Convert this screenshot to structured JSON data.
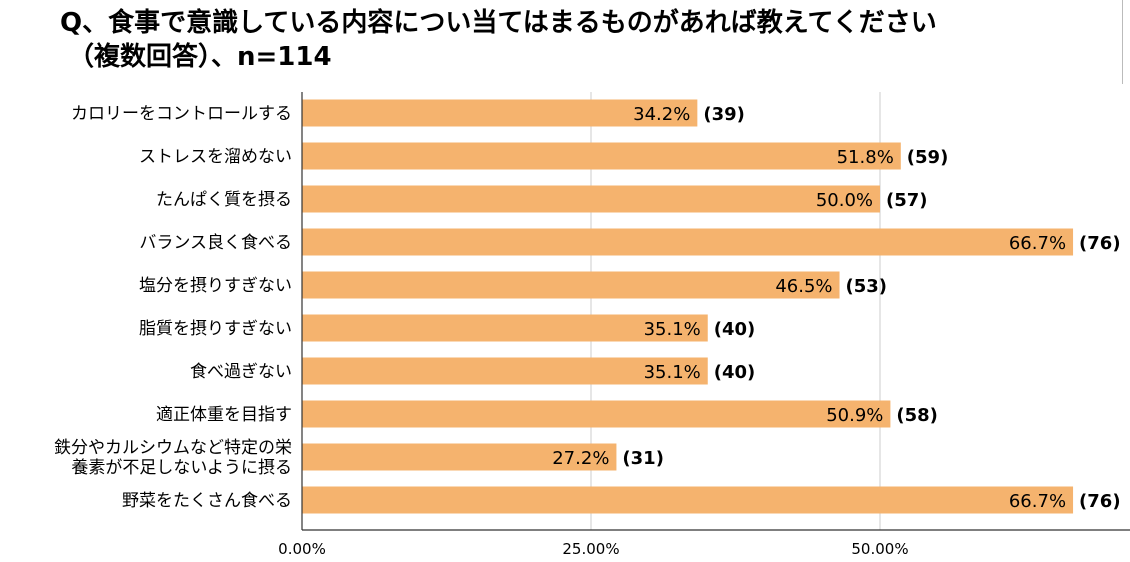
{
  "header": {
    "title_line1": "Q、食事で意識している内容につい当てはまるものがあれば教えてください",
    "title_line2": "（複数回答）、n=114"
  },
  "colors": {
    "bar": "#F5B36E",
    "grid": "#cccccc",
    "axis": "#333333"
  },
  "chart_data": {
    "type": "bar",
    "orientation": "horizontal",
    "title": "Q、食事で意識している内容につい当てはまるものがあれば教えてください（複数回答）、n=114",
    "categories": [
      [
        "カロリーをコントロールする"
      ],
      [
        "ストレスを溜めない"
      ],
      [
        "たんぱく質を摂る"
      ],
      [
        "バランス良く食べる"
      ],
      [
        "塩分を摂りすぎない"
      ],
      [
        "脂質を摂りすぎない"
      ],
      [
        "食べ過ぎない"
      ],
      [
        "適正体重を目指す"
      ],
      [
        "鉄分やカルシウムなど特定の栄",
        "養素が不足しないように摂る"
      ],
      [
        "野菜をたくさん食べる"
      ]
    ],
    "values": [
      34.2,
      51.8,
      50.0,
      66.7,
      46.5,
      35.1,
      35.1,
      50.9,
      27.2,
      66.7
    ],
    "value_labels": [
      "34.2%",
      "51.8%",
      "50.0%",
      "66.7%",
      "46.5%",
      "35.1%",
      "35.1%",
      "50.9%",
      "27.2%",
      "66.7%"
    ],
    "count_labels": [
      "(39)",
      "(59)",
      "(57)",
      "(76)",
      "(53)",
      "(40)",
      "(40)",
      "(58)",
      "(31)",
      "(76)"
    ],
    "x_ticks": [
      0,
      25,
      50
    ],
    "x_tick_labels": [
      "0.00%",
      "25.00%",
      "50.00%"
    ],
    "xlim": [
      0,
      72.5
    ],
    "xlabel": "",
    "ylabel": "",
    "grid": true
  }
}
